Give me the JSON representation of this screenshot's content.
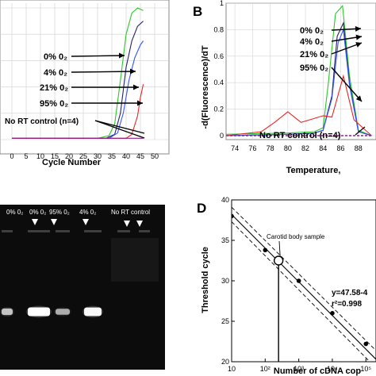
{
  "colors": {
    "zero_o2": "#2bc62b",
    "four_o2": "#222266",
    "twentyone_o2": "#3355ff",
    "ninetyfive_o2": "#ee2222",
    "no_rt": "#882288",
    "gel_bg": "#0c0c0c",
    "band": "#ffffff"
  },
  "chart_data": [
    {
      "type": "line",
      "panel": "",
      "xlabel": "Cycle Number",
      "ylabel": "",
      "xlim": [
        0,
        50
      ],
      "ylim": [
        0,
        1
      ],
      "xticks": [
        "0",
        "5",
        "10",
        "15",
        "20",
        "25",
        "30",
        "35",
        "40",
        "45",
        "50"
      ],
      "grid": true,
      "annotations": [
        "0% 0₂",
        "4% 0₂",
        "21% 0₂",
        "95% 0₂",
        "No RT control (n=4)"
      ],
      "series": [
        {
          "key": "zero",
          "x": [
            0,
            30,
            34,
            36,
            38,
            40,
            42,
            44,
            46
          ],
          "y": [
            0.01,
            0.01,
            0.03,
            0.12,
            0.45,
            0.8,
            0.96,
            1.0,
            0.98
          ]
        },
        {
          "key": "four",
          "x": [
            0,
            33,
            36,
            38,
            40,
            42,
            44,
            46
          ],
          "y": [
            0.01,
            0.01,
            0.04,
            0.2,
            0.55,
            0.75,
            0.86,
            0.9
          ]
        },
        {
          "key": "twentyone",
          "x": [
            0,
            34,
            37,
            39,
            41,
            43,
            45,
            46
          ],
          "y": [
            0.01,
            0.01,
            0.05,
            0.2,
            0.45,
            0.62,
            0.72,
            0.75
          ]
        },
        {
          "key": "ninetyfive",
          "x": [
            0,
            40,
            42,
            44,
            45,
            46
          ],
          "y": [
            0.01,
            0.01,
            0.04,
            0.18,
            0.32,
            0.42
          ]
        },
        {
          "key": "nort",
          "x": [
            0,
            46
          ],
          "y": [
            0.01,
            0.01
          ]
        }
      ]
    },
    {
      "type": "line",
      "panel": "B",
      "xlabel": "Temperature,",
      "ylabel": "-d(Fluorescence)/dT",
      "xlim": [
        73,
        90
      ],
      "ylim": [
        -0.03,
        1.0
      ],
      "xticks": [
        "74",
        "76",
        "78",
        "80",
        "82",
        "84",
        "86",
        "88"
      ],
      "yticks": [
        "0",
        "0.2",
        "0.4",
        "0.6",
        "0.8",
        "1"
      ],
      "grid": true,
      "annotations": [
        "0% 0₂",
        "4% 0₂",
        "21% 0₂",
        "95% 0₂",
        "No RT control (n=4)"
      ],
      "series": [
        {
          "key": "zero",
          "x": [
            73,
            80,
            83,
            84,
            84.6,
            85.4,
            86.2,
            87,
            88,
            89.5
          ],
          "y": [
            0.01,
            0.02,
            0.03,
            0.06,
            0.4,
            0.92,
            0.98,
            0.45,
            0.04,
            0.0
          ]
        },
        {
          "key": "four",
          "x": [
            73,
            80,
            83,
            84,
            85,
            85.6,
            86.3,
            87,
            88,
            89.5
          ],
          "y": [
            0.0,
            0.01,
            0.02,
            0.04,
            0.3,
            0.75,
            0.85,
            0.4,
            0.03,
            0.0
          ]
        },
        {
          "key": "twentyone",
          "x": [
            73,
            80,
            83,
            84,
            85,
            85.7,
            86.3,
            87,
            88,
            89.5
          ],
          "y": [
            0.0,
            0.01,
            0.02,
            0.04,
            0.28,
            0.7,
            0.8,
            0.38,
            0.03,
            0.0
          ]
        },
        {
          "key": "ninetyfive",
          "x": [
            73,
            77,
            78.5,
            80,
            81.5,
            82.5,
            84,
            85,
            86.3,
            87.5,
            89.5
          ],
          "y": [
            0.0,
            0.03,
            0.1,
            0.18,
            0.1,
            0.12,
            0.15,
            0.14,
            0.45,
            0.12,
            0.0
          ]
        },
        {
          "key": "nort",
          "x": [
            73,
            89.5
          ],
          "y": [
            0.0,
            0.0
          ]
        }
      ]
    },
    {
      "type": "scatter",
      "panel": "D",
      "xlabel": "Number of cDNA cop",
      "ylabel": "Threshold cycle",
      "xscale": "log",
      "xlim": [
        10,
        200000
      ],
      "ylim": [
        20,
        40
      ],
      "xticks": [
        "10",
        "10²",
        "10³",
        "10⁴",
        "10⁵"
      ],
      "yticks": [
        "20",
        "25",
        "30",
        "35",
        "40"
      ],
      "annotations": [
        "Carotid body sample",
        "y=47.58-4",
        "r²=0.998"
      ],
      "points": {
        "x": [
          10,
          100,
          1000,
          10000,
          100000
        ],
        "y": [
          38.0,
          33.8,
          30.0,
          26.0,
          22.2
        ]
      },
      "sample": {
        "x": 250,
        "y": 32.5
      }
    }
  ],
  "gel": {
    "lane_labels": [
      "0% 0₂",
      "0% 0₂",
      "95% 0₂",
      "4% 0₂",
      "No RT control"
    ]
  },
  "panels": {
    "b_letter": "B",
    "d_letter": "D"
  }
}
